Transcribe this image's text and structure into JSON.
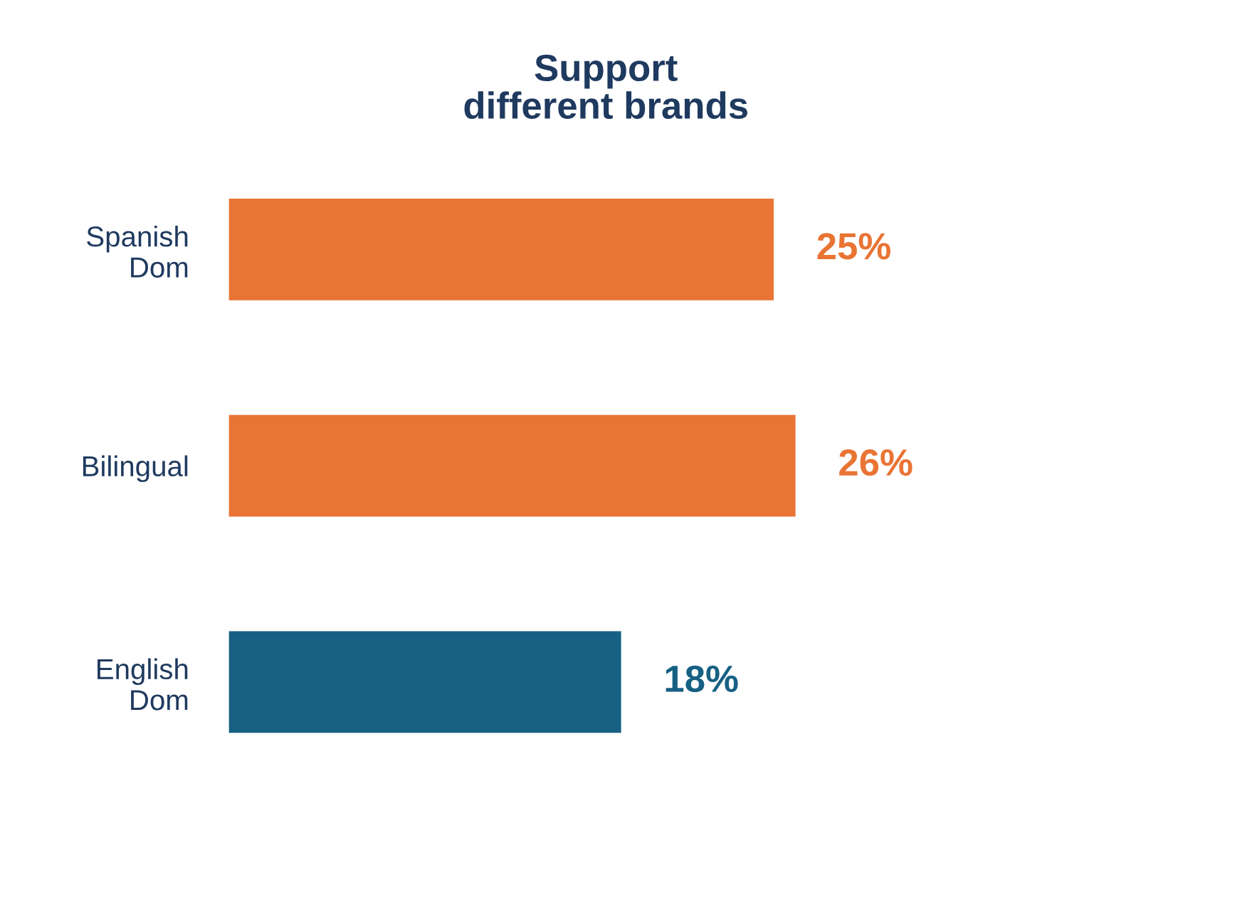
{
  "chart_data": {
    "type": "bar",
    "orientation": "horizontal",
    "title": "Support\ndifferent brands",
    "categories": [
      "Spanish\nDom",
      "Bilingual",
      "English\nDom"
    ],
    "values": [
      25,
      26,
      18
    ],
    "colors": [
      "#e97434",
      "#e97434",
      "#176084"
    ],
    "value_labels": [
      "25%",
      "26%",
      "18%"
    ],
    "grid": false,
    "legend": false,
    "tick_labels": "y"
  }
}
